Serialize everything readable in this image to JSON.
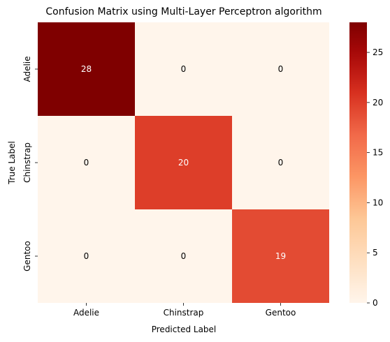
{
  "chart_data": {
    "type": "heatmap",
    "title": "Confusion Matrix using Multi-Layer Perceptron algorithm",
    "xlabel": "Predicted Label",
    "ylabel": "True Label",
    "x_categories": [
      "Adelie",
      "Chinstrap",
      "Gentoo"
    ],
    "y_categories": [
      "Adelie",
      "Chinstrap",
      "Gentoo"
    ],
    "values": [
      [
        28,
        0,
        0
      ],
      [
        0,
        20,
        0
      ],
      [
        0,
        0,
        19
      ]
    ],
    "colormap": "OrRd",
    "colorbar": {
      "range": [
        0,
        28
      ],
      "ticks": [
        0,
        5,
        10,
        15,
        20,
        25
      ]
    },
    "annotation_colors": {
      "dark_cell": "#ffffff",
      "light_cell": "#000000"
    }
  }
}
